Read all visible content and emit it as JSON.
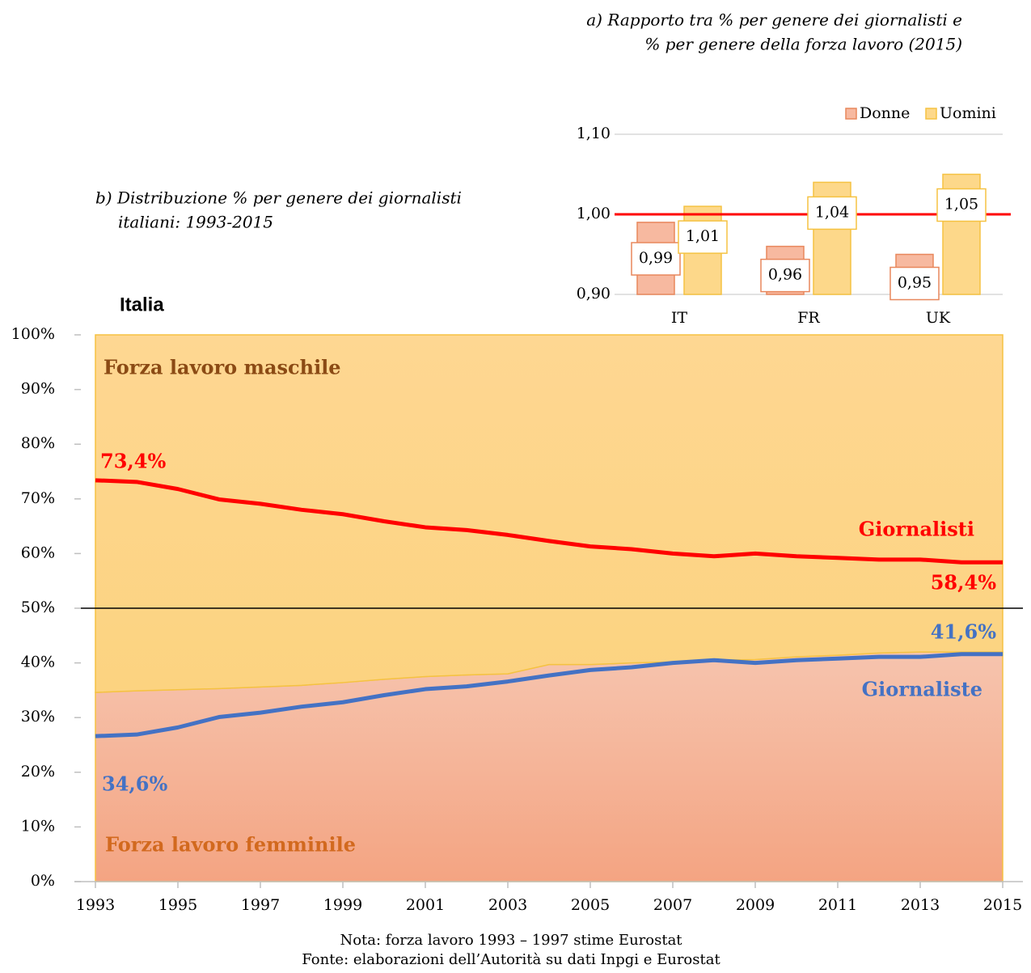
{
  "chart_data": [
    {
      "type": "stacked-area-line",
      "title": "Italia",
      "subtitle": [
        "b)  Distribuzione % per genere dei giornalisti",
        "italiani: 1993-2015"
      ],
      "x": [
        1993,
        1994,
        1995,
        1996,
        1997,
        1998,
        1999,
        2000,
        2001,
        2002,
        2003,
        2004,
        2005,
        2006,
        2007,
        2008,
        2009,
        2010,
        2011,
        2012,
        2013,
        2014,
        2015
      ],
      "xlim": [
        1993,
        2015
      ],
      "xticks": [
        1993,
        1995,
        1997,
        1999,
        2001,
        2003,
        2005,
        2007,
        2009,
        2011,
        2013,
        2015
      ],
      "ylim": [
        0,
        100
      ],
      "yticks": [
        {
          "value": 0,
          "label": "0%"
        },
        {
          "value": 10,
          "label": "10%"
        },
        {
          "value": 20,
          "label": "20%"
        },
        {
          "value": 30,
          "label": "30%"
        },
        {
          "value": 40,
          "label": "40%"
        },
        {
          "value": 50,
          "label": "50%"
        },
        {
          "value": 60,
          "label": "60%"
        },
        {
          "value": 70,
          "label": "70%"
        },
        {
          "value": 80,
          "label": "80%"
        },
        {
          "value": 90,
          "label": "90%"
        },
        {
          "value": 100,
          "label": "100%"
        }
      ],
      "reference_line": 50,
      "series": [
        {
          "name": "Forza lavoro femminile",
          "kind": "area",
          "color": "#f5b59a",
          "values": [
            34.6,
            34.9,
            35.1,
            35.3,
            35.6,
            35.9,
            36.4,
            37.0,
            37.5,
            37.8,
            38.0,
            39.7,
            39.7,
            40.0,
            40.2,
            40.5,
            40.6,
            41.1,
            41.4,
            41.8,
            42.0,
            42.0,
            42.0
          ]
        },
        {
          "name": "Forza lavoro maschile",
          "kind": "area",
          "color": "#fdd68a",
          "values": [
            65.4,
            65.1,
            64.9,
            64.7,
            64.4,
            64.1,
            63.6,
            63.0,
            62.5,
            62.2,
            62.0,
            60.3,
            60.3,
            60.0,
            59.8,
            59.5,
            59.4,
            58.9,
            58.6,
            58.2,
            58.0,
            58.0,
            58.0
          ]
        },
        {
          "name": "Giornalisti",
          "kind": "line",
          "color": "#ff0000",
          "values": [
            73.4,
            73.1,
            71.8,
            69.9,
            69.1,
            68.0,
            67.2,
            65.9,
            64.8,
            64.3,
            63.4,
            62.3,
            61.3,
            60.8,
            60.0,
            59.5,
            60.0,
            59.5,
            59.2,
            58.9,
            58.9,
            58.4,
            58.4
          ]
        },
        {
          "name": "Giornaliste",
          "kind": "line",
          "color": "#4472c4",
          "values": [
            26.6,
            26.9,
            28.2,
            30.1,
            30.9,
            32.0,
            32.8,
            34.1,
            35.2,
            35.7,
            36.6,
            37.7,
            38.7,
            39.2,
            40.0,
            40.5,
            40.0,
            40.5,
            40.8,
            41.1,
            41.1,
            41.6,
            41.6
          ]
        }
      ],
      "annotations": [
        {
          "text": "73,4%",
          "color": "#ff0000"
        },
        {
          "text": "58,4%",
          "color": "#ff0000"
        },
        {
          "text": "41,6%",
          "color": "#4472c4"
        },
        {
          "text": "34,6%",
          "color": "#4472c4"
        }
      ]
    },
    {
      "type": "bar",
      "title": [
        "a)  Rapporto tra % per genere dei giornalisti e",
        "% per genere della forza lavoro (2015)"
      ],
      "categories": [
        "IT",
        "FR",
        "UK"
      ],
      "ylim": [
        0.9,
        1.1
      ],
      "yticks": [
        {
          "value": 0.9,
          "label": "0,90"
        },
        {
          "value": 1.0,
          "label": "1,00"
        },
        {
          "value": 1.1,
          "label": "1,10"
        }
      ],
      "reference_line": 1,
      "legend": "top-right",
      "series": [
        {
          "name": "Donne",
          "color": "#f7b9a0",
          "values": [
            0.99,
            0.96,
            0.95
          ],
          "value_labels": [
            "0,99",
            "0,96",
            "0,95"
          ]
        },
        {
          "name": "Uomini",
          "color": "#fdd88a",
          "values": [
            1.01,
            1.04,
            1.05
          ],
          "value_labels": [
            "1,01",
            "1,04",
            "1,05"
          ]
        }
      ]
    }
  ],
  "notes": [
    "Nota: forza lavoro 1993 – 1997 stime Eurostat",
    "Fonte: elaborazioni dell’Autorità su dati Inpgi e Eurostat"
  ]
}
